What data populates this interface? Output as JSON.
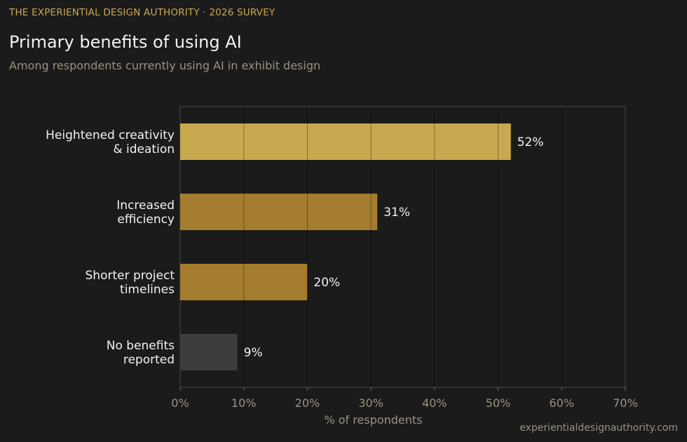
{
  "header": {
    "kicker": "THE EXPERIENTIAL DESIGN AUTHORITY · 2026 SURVEY",
    "title": "Primary benefits of using AI",
    "subtitle": "Among respondents currently using AI in exhibit design"
  },
  "footer": {
    "source": "experientialdesignauthority.com"
  },
  "chart_data": {
    "type": "bar",
    "orientation": "horizontal",
    "categories": [
      [
        "Heightened creativity",
        "& ideation"
      ],
      [
        "Increased",
        "efficiency"
      ],
      [
        "Shorter project",
        "timelines"
      ],
      [
        "No benefits",
        "reported"
      ]
    ],
    "values": [
      52,
      31,
      20,
      9
    ],
    "value_labels": [
      "52%",
      "31%",
      "20%",
      "9%"
    ],
    "bar_colors": [
      "#c8a94f",
      "#a47d2f",
      "#a47d2f",
      "#3d3d3d"
    ],
    "xlim": [
      0,
      70
    ],
    "xticks": [
      0,
      10,
      20,
      30,
      40,
      50,
      60,
      70
    ],
    "xtick_labels": [
      "0%",
      "10%",
      "20%",
      "30%",
      "40%",
      "50%",
      "60%",
      "70%"
    ],
    "xlabel": "% of respondents",
    "ylabel": "",
    "grid": "vertical",
    "legend": "none"
  },
  "colors": {
    "background": "#1b1b1b",
    "accent": "#c8a94f",
    "text_primary": "#f2f2f2",
    "text_muted": "#9a9182"
  }
}
